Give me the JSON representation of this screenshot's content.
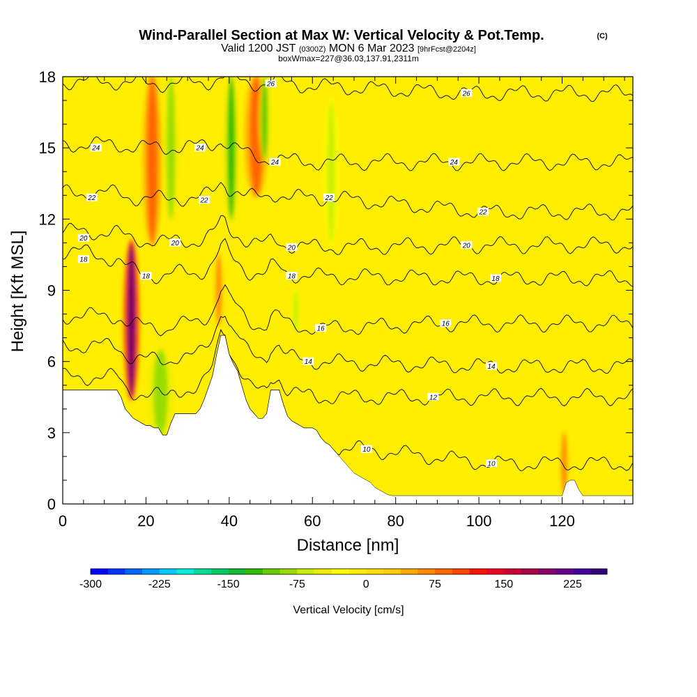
{
  "title": {
    "main": "Wind-Parallel Section at Max W: Vertical Velocity & Pot.Temp.",
    "copyright": "(C)",
    "valid_prefix": "Valid 1200 JST",
    "valid_utc": "(0300Z)",
    "valid_date": "MON 6 Mar 2023",
    "forecast": "[9hrFcst@2204z]",
    "box_info": "boxWmax=227@36.03,137.91,2311m"
  },
  "chart_data": {
    "type": "heatmap",
    "xlabel": "Distance [nm]",
    "ylabel": "Height [Kft MSL]",
    "xlim": [
      0,
      137
    ],
    "ylim": [
      0,
      18
    ],
    "x_ticks": [
      0,
      20,
      40,
      60,
      80,
      100,
      120
    ],
    "y_ticks": [
      0,
      3,
      6,
      9,
      12,
      15,
      18
    ],
    "terrain": {
      "distance_nm": [
        0,
        8,
        10,
        12,
        13,
        14,
        15,
        16,
        17,
        18,
        19,
        20,
        21,
        22,
        23,
        24,
        25,
        26,
        27,
        28,
        29,
        30,
        31,
        32,
        33,
        34,
        35,
        36,
        37,
        38,
        39,
        40,
        41,
        42,
        43,
        44,
        45,
        46,
        47,
        48,
        49,
        50,
        51,
        52,
        53,
        54,
        55,
        56,
        57,
        58,
        59,
        60,
        61,
        62,
        63,
        64,
        65,
        66,
        67,
        68,
        69,
        70,
        71,
        72,
        73,
        74,
        75,
        76,
        77,
        78,
        79,
        80,
        90,
        100,
        110,
        120,
        121,
        122,
        123,
        124,
        125,
        137
      ],
      "height_kft": [
        4.8,
        4.8,
        4.8,
        4.8,
        4.8,
        4.5,
        4.0,
        3.8,
        3.6,
        3.5,
        3.4,
        3.3,
        3.3,
        3.2,
        3.2,
        2.9,
        2.9,
        3.4,
        3.8,
        3.8,
        3.8,
        3.8,
        3.8,
        3.8,
        4.0,
        4.4,
        4.9,
        5.4,
        6.3,
        7.1,
        7.1,
        6.3,
        5.9,
        5.6,
        5.0,
        4.4,
        4.0,
        3.8,
        3.6,
        3.6,
        3.8,
        4.8,
        4.8,
        4.8,
        4.2,
        3.7,
        3.5,
        3.4,
        3.3,
        3.2,
        3.2,
        3.2,
        3.1,
        2.8,
        2.6,
        2.5,
        2.3,
        2.1,
        1.9,
        1.7,
        1.5,
        1.3,
        1.2,
        1.1,
        1.0,
        0.9,
        0.7,
        0.6,
        0.5,
        0.4,
        0.35,
        0.35,
        0.35,
        0.35,
        0.35,
        0.35,
        0.9,
        1.0,
        1.0,
        0.6,
        0.35,
        0.35
      ]
    },
    "vertical_velocity_features": [
      {
        "x_center_nm": 16.5,
        "z_bottom_kft": 4.5,
        "z_top_kft": 11.0,
        "width_nm": 2.2,
        "w_cms": 200
      },
      {
        "x_center_nm": 21.5,
        "z_bottom_kft": 11.0,
        "z_top_kft": 18.0,
        "width_nm": 2.6,
        "w_cms": 90
      },
      {
        "x_center_nm": 46.5,
        "z_bottom_kft": 13.0,
        "z_top_kft": 18.0,
        "width_nm": 3.2,
        "w_cms": 80
      },
      {
        "x_center_nm": 37.5,
        "z_bottom_kft": 7.5,
        "z_top_kft": 10.5,
        "width_nm": 1.2,
        "w_cms": 70
      },
      {
        "x_center_nm": 120.5,
        "z_bottom_kft": 0.4,
        "z_top_kft": 3.0,
        "width_nm": 1.2,
        "w_cms": 60
      },
      {
        "x_center_nm": 23.5,
        "z_bottom_kft": 2.9,
        "z_top_kft": 6.5,
        "width_nm": 3.5,
        "w_cms": -80
      },
      {
        "x_center_nm": 26.0,
        "z_bottom_kft": 12.0,
        "z_top_kft": 18.0,
        "width_nm": 2.0,
        "w_cms": -90
      },
      {
        "x_center_nm": 40.5,
        "z_bottom_kft": 12.0,
        "z_top_kft": 18.0,
        "width_nm": 1.8,
        "w_cms": -120
      },
      {
        "x_center_nm": 48.5,
        "z_bottom_kft": 14.5,
        "z_top_kft": 18.0,
        "width_nm": 1.6,
        "w_cms": -100
      },
      {
        "x_center_nm": 64.5,
        "z_bottom_kft": 11.0,
        "z_top_kft": 17.0,
        "width_nm": 2.0,
        "w_cms": -60
      },
      {
        "x_center_nm": 56.0,
        "z_bottom_kft": 7.2,
        "z_top_kft": 9.0,
        "width_nm": 1.4,
        "w_cms": -60
      }
    ],
    "potential_temperature_contours": [
      {
        "value": 10,
        "labels": [
          {
            "x": 73,
            "y": 2.3
          },
          {
            "x": 103,
            "y": 1.7
          }
        ],
        "base_height_kft": 1.5
      },
      {
        "value": 12,
        "labels": [
          {
            "x": 89,
            "y": 4.5
          }
        ],
        "base_height_kft": 4.4
      },
      {
        "value": 14,
        "labels": [
          {
            "x": 59,
            "y": 6.0
          },
          {
            "x": 103,
            "y": 5.8
          }
        ],
        "base_height_kft": 5.8
      },
      {
        "value": 16,
        "labels": [
          {
            "x": 62,
            "y": 7.4
          },
          {
            "x": 92,
            "y": 7.6
          }
        ],
        "base_height_kft": 7.6
      },
      {
        "value": 18,
        "labels": [
          {
            "x": 5,
            "y": 10.3
          },
          {
            "x": 20,
            "y": 9.6
          },
          {
            "x": 55,
            "y": 9.6
          },
          {
            "x": 104,
            "y": 9.5
          }
        ],
        "base_height_kft": 9.5
      },
      {
        "value": 20,
        "labels": [
          {
            "x": 5,
            "y": 11.2
          },
          {
            "x": 27,
            "y": 11.0
          },
          {
            "x": 55,
            "y": 10.8
          },
          {
            "x": 97,
            "y": 10.9
          }
        ],
        "base_height_kft": 10.9
      },
      {
        "value": 22,
        "labels": [
          {
            "x": 7,
            "y": 12.9
          },
          {
            "x": 34,
            "y": 12.8
          },
          {
            "x": 64,
            "y": 12.9
          },
          {
            "x": 101,
            "y": 12.3
          }
        ],
        "base_height_kft": 12.3
      },
      {
        "value": 24,
        "labels": [
          {
            "x": 8,
            "y": 15.0
          },
          {
            "x": 33,
            "y": 15.0
          },
          {
            "x": 51,
            "y": 14.4
          },
          {
            "x": 94,
            "y": 14.4
          }
        ],
        "base_height_kft": 14.4
      },
      {
        "value": 26,
        "labels": [
          {
            "x": 50,
            "y": 17.7
          },
          {
            "x": 97,
            "y": 17.3
          }
        ],
        "base_height_kft": 17.3
      }
    ],
    "colorbar": {
      "label": "Vertical Velocity [cm/s]",
      "min": -300,
      "max": 262.5,
      "step": 18.75,
      "tick_values": [
        -300,
        -225,
        -150,
        -75,
        0,
        75,
        150,
        225
      ],
      "tick_labels": [
        "-300",
        "-225",
        "-150",
        "-75",
        "0",
        "75",
        "150",
        "225"
      ],
      "colors": [
        "#0000ff",
        "#0033ff",
        "#0066ff",
        "#0099ff",
        "#00ccff",
        "#00eedd",
        "#00dd99",
        "#00cc66",
        "#11bb33",
        "#33bb00",
        "#66cc00",
        "#99dd00",
        "#ccee00",
        "#eeee00",
        "#ffff00",
        "#ffee00",
        "#ffdd00",
        "#ffcc00",
        "#ffaa00",
        "#ff8800",
        "#ff6600",
        "#ff4400",
        "#ff1100",
        "#ee0022",
        "#cc0033",
        "#aa0044",
        "#880066",
        "#660088",
        "#440099",
        "#330077"
      ]
    }
  }
}
